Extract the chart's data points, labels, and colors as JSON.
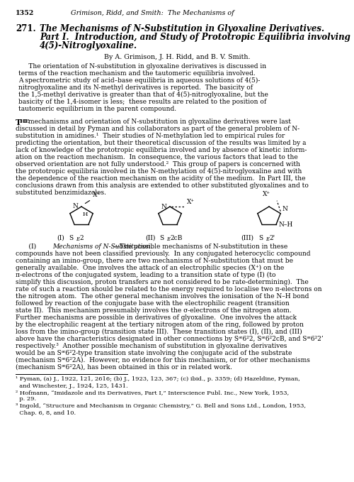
{
  "bg_color": "#ffffff",
  "header_num": "1352",
  "header_text": "Grimison, Ridd, and Smith:  The Mechanisms of",
  "title_num": "271.",
  "title_line1": "The Mechanisms of N-Substitution in Glyoxaline Derivatives.",
  "title_line2": "Part I.  Introduction, and Study of Prototropic Equilibria involving",
  "title_line3": "4(5)-Nitroglyoxaline.",
  "byline": "By A. Grimison, J. H. Ridd, and B. V. Smith.",
  "abs_lines": [
    "     The orientation of N-substitution in glyoxaline derivatives is discussed in",
    "terms of the reaction mechanism and the tautomeric equilibria involved.",
    "A spectrometric study of acid–base equilibria in aqueous solutions of 4(5)-",
    "nitroglyoxaline and its N-methyl derivatives is reported.  The basicity of",
    "the 1,5-methyl derivative is greater than that of 4(5)-nitroglyoxaline, but the",
    "basicity of the 1,4-isomer is less;  these results are related to the position of",
    "tautomeric equilibrium in the parent compound."
  ],
  "body1_first": "mechanisms and orientation of N-substitution in glyoxaline derivatives were last",
  "body1_lines": [
    "discussed in detail by Pyman and his collaborators as part of the general problem of N-",
    "substitution in amidines.¹  Their studies of N-methylation led to empirical rules for",
    "predicting the orientation, but their theoretical discussion of the results was limited by a",
    "lack of knowledge of the prototropic equilibria involved and by absence of kinetic inform-",
    "ation on the reaction mechanism.  In consequence, the various factors that lead to the",
    "observed orientation are not fully understood.²  This group of papers is concerned with",
    "the prototropic equilibria involved in the N-methylation of 4(5)-nitroglyoxaline and with",
    "the dependence of the reaction mechanism on the acidity of the medium.  In Part III, the",
    "conclusions drawn from this analysis are extended to other substituted glyoxalines and to",
    "substituted benzimidazoles."
  ],
  "body2_italic": "Mechanisms of N-Substitution.",
  "body2_lines": [
    "compounds have not been classified previously.  In any conjugated heterocyclic compound",
    "containing an imino-group, there are two mechanisms of N-substitution that must be",
    "generally available.  One involves the attack of an electrophilic species (X⁺) on the",
    "π-electrons of the conjugated system, leading to a transition state of type (I) (to",
    "simplify this discussion, proton transfers are not considered to be rate-determining).  The",
    "rate of such a reaction should be related to the energy required to localise two π-electrons on",
    "the nitrogen atom.  The other general mechanism involves the ionisation of the N–H bond",
    "followed by reaction of the conjugate base with the electrophilic reagent (transition",
    "state II).  This mechanism presumably involves the σ-electrons of the nitrogen atom.",
    "Further mechanisms are possible in derivatives of glyoxaline.  One involves the attack",
    "by the electrophilic reagent at the tertiary nitrogen atom of the ring, followed by proton",
    "loss from the imino-group (transition state III).  These transition states (I), (II), and (III)",
    "above have the characteristics designated in other connections by Sᵆ6²2, Sᵆ6²2cB, and Sᵆ6²2’",
    "respectively.³  Another possible mechanism of substitution in glyoxaline derivatives",
    "would be an Sᵆ6²2-type transition state involving the conjugate acid of the substrate",
    "(mechanism Sᵆ6²2A).  However, no evidence for this mechanism, or for other mechanisms",
    "(mechanism Sᵆ6²2A), has been obtained in this or in related work."
  ],
  "fn_lines": [
    "¹ Pyman, (a) J., 1922, 121, 2616; (b) J., 1923, 123, 367; (c) ibid., p. 3359; (d) Hazeldine, Pyman,",
    "  and Winchester, J., 1924, 125, 1431.",
    "² Hofmann, “Imidazole and its Derivatives, Part I,” Interscience Publ. Inc., New York, 1953,",
    "  p. 29.",
    "³ Ingold, “Structure and Mechanism in Organic Chemistry,” G. Bell and Sons Ltd., London, 1953,",
    "  Chap. 6, 8, and 10."
  ]
}
